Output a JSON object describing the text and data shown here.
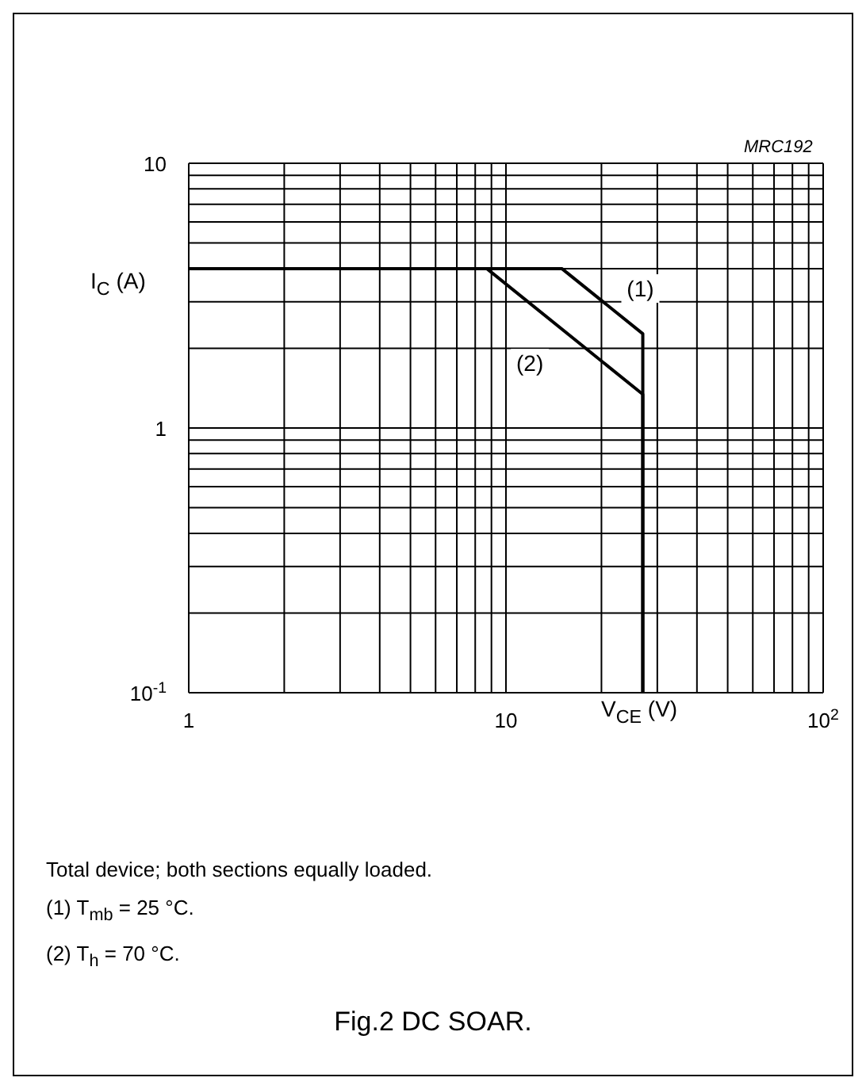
{
  "chart_data": {
    "type": "line",
    "title": "Fig.2  DC SOAR.",
    "subtitle": "MRC192",
    "xlabel": "V$_{CE}$ (V)",
    "ylabel": "I$_{C}$ (A)",
    "log": "xy",
    "grid": true,
    "marker": "none",
    "line_style": "solid",
    "legend": false,
    "xlim": [
      1,
      100
    ],
    "ylim": [
      0.1,
      10
    ],
    "xticks": [
      1,
      {
        "value": 2,
        "label": null
      },
      {
        "value": 3,
        "label": null
      },
      {
        "value": 4,
        "label": null
      },
      {
        "value": 5,
        "label": null
      },
      {
        "value": 6,
        "label": null
      },
      {
        "value": 7,
        "label": null
      },
      {
        "value": 8,
        "label": null
      },
      {
        "value": 9,
        "label": null
      },
      10,
      {
        "value": 20,
        "label": null
      },
      {
        "value": 30,
        "label": null
      },
      {
        "value": 40,
        "label": null
      },
      {
        "value": 50,
        "label": null
      },
      {
        "value": 60,
        "label": null
      },
      {
        "value": 70,
        "label": null
      },
      {
        "value": 80,
        "label": null
      },
      {
        "value": 90,
        "label": null
      },
      {
        "value": 100,
        "label": "10$^{2}$"
      }
    ],
    "yticks": [
      {
        "value": 0.1,
        "label": "10$^{-1}$"
      },
      {
        "value": 0.2,
        "label": null
      },
      {
        "value": 0.3,
        "label": null
      },
      {
        "value": 0.4,
        "label": null
      },
      {
        "value": 0.5,
        "label": null
      },
      {
        "value": 0.6,
        "label": null
      },
      {
        "value": 0.7,
        "label": null
      },
      {
        "value": 0.8,
        "label": null
      },
      {
        "value": 0.9,
        "label": null
      },
      1,
      {
        "value": 2,
        "label": null
      },
      {
        "value": 3,
        "label": null
      },
      {
        "value": 4,
        "label": null
      },
      {
        "value": 5,
        "label": null
      },
      {
        "value": 6,
        "label": null
      },
      {
        "value": 7,
        "label": null
      },
      {
        "value": 8,
        "label": null
      },
      {
        "value": 9,
        "label": null
      },
      10
    ],
    "series": [
      {
        "name": "(1)",
        "color": "#000000",
        "x": [
          1,
          15,
          27,
          27
        ],
        "values": [
          4,
          4,
          2.27,
          0.1
        ]
      },
      {
        "name": "(2)",
        "color": "#000000",
        "x": [
          1,
          8.7,
          27,
          27
        ],
        "values": [
          4,
          4,
          1.34,
          0.1
        ]
      }
    ],
    "annotations": [
      "Total device; both sections equally loaded.",
      "(1)  T$_{mb}$ = 25 °C.",
      "(2)  T$_{h}$ = 70 °C."
    ]
  }
}
